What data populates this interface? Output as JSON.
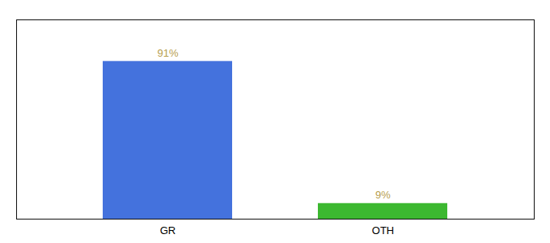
{
  "chart_data": {
    "type": "bar",
    "categories": [
      "GR",
      "OTH"
    ],
    "values": [
      91,
      9
    ],
    "value_labels": [
      "91%",
      "9%"
    ],
    "colors": [
      "#4472dd",
      "#3cb830"
    ],
    "ylim": [
      0,
      115
    ],
    "data_labels": true,
    "tick_labels": "x",
    "grid": false
  }
}
